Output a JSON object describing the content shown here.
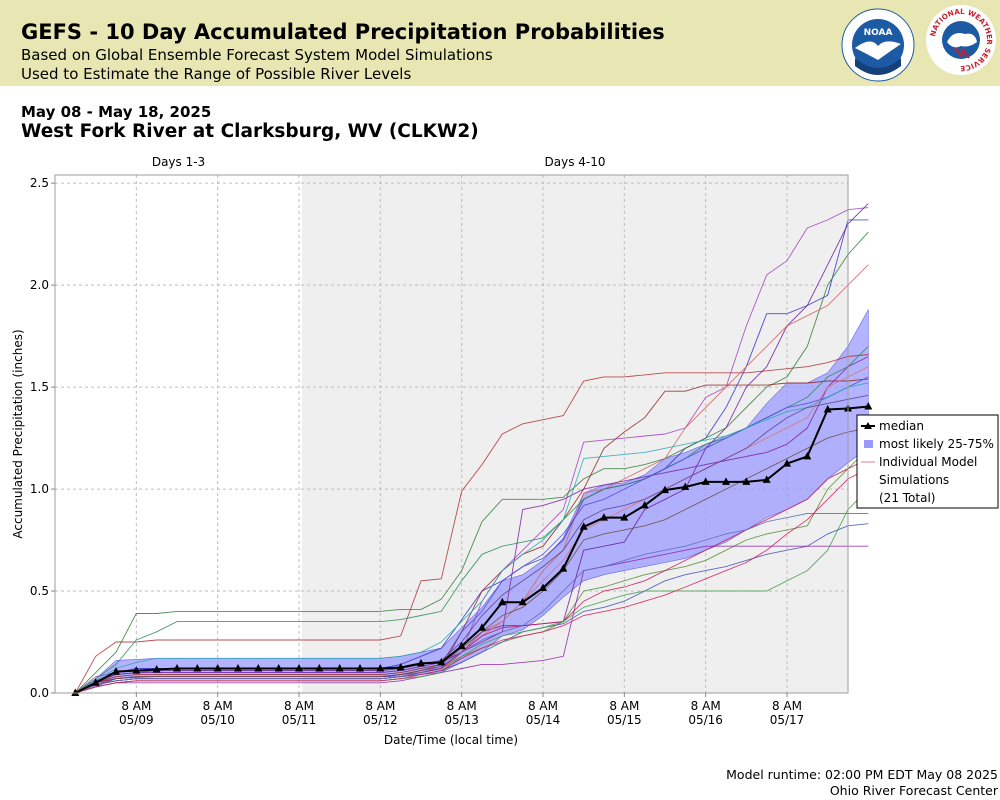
{
  "header": {
    "title": "GEFS - 10 Day Accumulated Precipitation Probabilities",
    "subtitle_line1": "Based on Global Ensemble Forecast System Model Simulations",
    "subtitle_line2": "Used to Estimate the Range of Possible River Levels",
    "logos": [
      {
        "name": "noaa-logo",
        "text": "NOAA"
      },
      {
        "name": "nws-logo",
        "text": "NATIONAL WEATHER SERVICE"
      }
    ],
    "colors": {
      "banner": "#e8e6b3",
      "noaa_blue": "#1c5aa3",
      "nws_red": "#c8202f"
    }
  },
  "date_range": "May 08 - May 18, 2025",
  "station": "West Fork River at Clarksburg, WV (CLKW2)",
  "footer": {
    "runtime": "Model runtime: 02:00 PM EDT May 08 2025",
    "center": "Ohio River Forecast Center"
  },
  "chart_data": {
    "type": "line",
    "xlabel": "Date/Time (local time)",
    "ylabel": "Accumulated Precipitation (inches)",
    "ylim": [
      0,
      2.54
    ],
    "yticks": [
      0.0,
      0.5,
      1.0,
      1.5,
      2.0,
      2.5
    ],
    "ytick_labels": [
      "0.0",
      "0.5",
      "1.0",
      "1.5",
      "2.0",
      "2.5"
    ],
    "xlim_hours": [
      -1,
      38
    ],
    "xticks": [
      {
        "h": 3,
        "time": "8 AM",
        "date": "05/09"
      },
      {
        "h": 7,
        "time": "8 AM",
        "date": "05/10"
      },
      {
        "h": 11,
        "time": "8 AM",
        "date": "05/11"
      },
      {
        "h": 15,
        "time": "8 AM",
        "date": "05/12"
      },
      {
        "h": 19,
        "time": "8 AM",
        "date": "05/13"
      },
      {
        "h": 23,
        "time": "8 AM",
        "date": "05/14"
      },
      {
        "h": 27,
        "time": "8 AM",
        "date": "05/15"
      },
      {
        "h": 31,
        "time": "8 AM",
        "date": "05/16"
      },
      {
        "h": 35,
        "time": "8 AM",
        "date": "05/17"
      }
    ],
    "x_unit": "6-hour steps from model start",
    "periods": [
      {
        "label": "Days 1-3",
        "start": -1,
        "end": 11.15,
        "shaded": false
      },
      {
        "label": "Days 4-10",
        "start": 11.15,
        "end": 38,
        "shaded": true
      }
    ],
    "grid": true,
    "legend": {
      "placement": "right",
      "entries": [
        "median",
        "most likely 25-75%",
        "Individual Model Simulations",
        "(21 Total)"
      ]
    },
    "colors": {
      "median": "#000000",
      "band": "#9999ff",
      "band_edge": "#6666ee",
      "shade": "#efefef"
    },
    "median": [
      0.0,
      0.05,
      0.105,
      0.11,
      0.115,
      0.12,
      0.12,
      0.12,
      0.12,
      0.12,
      0.12,
      0.12,
      0.12,
      0.12,
      0.12,
      0.12,
      0.125,
      0.145,
      0.15,
      0.23,
      0.32,
      0.445,
      0.445,
      0.515,
      0.61,
      0.815,
      0.86,
      0.86,
      0.92,
      0.995,
      1.01,
      1.035,
      1.035,
      1.035,
      1.045,
      1.125,
      1.16,
      1.39,
      1.395,
      1.405
    ],
    "band_low": [
      0.0,
      0.03,
      0.07,
      0.075,
      0.08,
      0.08,
      0.08,
      0.08,
      0.08,
      0.08,
      0.08,
      0.08,
      0.08,
      0.08,
      0.08,
      0.08,
      0.08,
      0.09,
      0.1,
      0.15,
      0.2,
      0.28,
      0.31,
      0.38,
      0.47,
      0.55,
      0.58,
      0.6,
      0.62,
      0.64,
      0.66,
      0.7,
      0.74,
      0.8,
      0.86,
      0.9,
      0.95,
      1.05,
      1.13,
      1.2
    ],
    "band_high": [
      0.0,
      0.07,
      0.16,
      0.165,
      0.17,
      0.17,
      0.17,
      0.17,
      0.17,
      0.17,
      0.17,
      0.17,
      0.17,
      0.17,
      0.17,
      0.17,
      0.18,
      0.2,
      0.22,
      0.32,
      0.42,
      0.55,
      0.58,
      0.65,
      0.76,
      0.98,
      1.02,
      1.03,
      1.07,
      1.15,
      1.18,
      1.22,
      1.26,
      1.3,
      1.42,
      1.52,
      1.52,
      1.57,
      1.7,
      1.88
    ],
    "simulations": [
      {
        "color": "#b03030",
        "values": [
          0.0,
          0.18,
          0.25,
          0.25,
          0.26,
          0.26,
          0.26,
          0.26,
          0.26,
          0.26,
          0.26,
          0.26,
          0.26,
          0.26,
          0.26,
          0.26,
          0.28,
          0.55,
          0.56,
          0.99,
          1.12,
          1.27,
          1.32,
          1.34,
          1.36,
          1.53,
          1.55,
          1.55,
          1.56,
          1.57,
          1.57,
          1.57,
          1.57,
          1.57,
          1.58,
          1.59,
          1.6,
          1.62,
          1.65,
          1.66
        ]
      },
      {
        "color": "#a040c0",
        "values": [
          0.0,
          0.08,
          0.1,
          0.11,
          0.11,
          0.11,
          0.11,
          0.11,
          0.11,
          0.11,
          0.11,
          0.11,
          0.11,
          0.11,
          0.11,
          0.11,
          0.12,
          0.14,
          0.15,
          0.2,
          0.45,
          0.6,
          0.7,
          0.8,
          0.9,
          1.23,
          1.24,
          1.25,
          1.26,
          1.27,
          1.3,
          1.45,
          1.5,
          1.8,
          2.05,
          2.12,
          2.28,
          2.32,
          2.37,
          2.38
        ]
      },
      {
        "color": "#3333cc",
        "values": [
          0.0,
          0.05,
          0.1,
          0.12,
          0.12,
          0.12,
          0.12,
          0.12,
          0.12,
          0.12,
          0.12,
          0.12,
          0.12,
          0.12,
          0.12,
          0.12,
          0.14,
          0.18,
          0.22,
          0.36,
          0.5,
          0.55,
          0.62,
          0.66,
          0.75,
          0.95,
          1.0,
          1.02,
          1.05,
          1.1,
          1.2,
          1.25,
          1.4,
          1.6,
          1.86,
          1.86,
          1.9,
          1.95,
          2.32,
          2.32
        ]
      },
      {
        "color": "#2e7d32",
        "values": [
          0.0,
          0.1,
          0.2,
          0.39,
          0.39,
          0.4,
          0.4,
          0.4,
          0.4,
          0.4,
          0.4,
          0.4,
          0.4,
          0.4,
          0.4,
          0.4,
          0.41,
          0.41,
          0.46,
          0.6,
          0.84,
          0.95,
          0.95,
          0.95,
          0.96,
          1.05,
          1.1,
          1.1,
          1.12,
          1.15,
          1.2,
          1.25,
          1.3,
          1.4,
          1.5,
          1.55,
          1.7,
          2.0,
          2.15,
          2.26
        ]
      },
      {
        "color": "#6a1b9a",
        "values": [
          0.0,
          0.06,
          0.09,
          0.1,
          0.1,
          0.1,
          0.1,
          0.1,
          0.1,
          0.1,
          0.1,
          0.1,
          0.1,
          0.1,
          0.1,
          0.1,
          0.11,
          0.13,
          0.15,
          0.2,
          0.3,
          0.33,
          0.33,
          0.34,
          0.35,
          0.7,
          0.72,
          0.74,
          0.9,
          0.95,
          1.0,
          1.2,
          1.3,
          1.5,
          1.6,
          1.8,
          1.9,
          2.1,
          2.3,
          2.4
        ]
      },
      {
        "color": "#d06060",
        "values": [
          0.0,
          0.04,
          0.06,
          0.07,
          0.07,
          0.07,
          0.07,
          0.07,
          0.07,
          0.07,
          0.07,
          0.07,
          0.07,
          0.07,
          0.07,
          0.07,
          0.08,
          0.1,
          0.12,
          0.2,
          0.3,
          0.35,
          0.45,
          0.6,
          0.7,
          0.98,
          1.0,
          1.05,
          1.1,
          1.15,
          1.3,
          1.4,
          1.5,
          1.6,
          1.7,
          1.8,
          1.85,
          1.9,
          2.0,
          2.1
        ]
      },
      {
        "color": "#8e2424",
        "values": [
          0.0,
          0.05,
          0.08,
          0.09,
          0.09,
          0.09,
          0.09,
          0.09,
          0.09,
          0.09,
          0.09,
          0.09,
          0.09,
          0.09,
          0.09,
          0.09,
          0.1,
          0.12,
          0.14,
          0.3,
          0.5,
          0.6,
          0.68,
          0.72,
          0.85,
          1.0,
          1.2,
          1.28,
          1.35,
          1.48,
          1.48,
          1.51,
          1.51,
          1.51,
          1.51,
          1.52,
          1.52,
          1.53,
          1.53,
          1.54
        ]
      },
      {
        "color": "#2e8b57",
        "values": [
          0.0,
          0.07,
          0.14,
          0.26,
          0.3,
          0.35,
          0.35,
          0.35,
          0.35,
          0.35,
          0.35,
          0.35,
          0.35,
          0.35,
          0.35,
          0.35,
          0.36,
          0.38,
          0.4,
          0.55,
          0.68,
          0.72,
          0.74,
          0.76,
          0.85,
          0.95,
          1.0,
          1.02,
          1.05,
          1.1,
          1.15,
          1.22,
          1.25,
          1.3,
          1.35,
          1.4,
          1.45,
          1.55,
          1.6,
          1.7
        ]
      },
      {
        "color": "#7b1fa2",
        "values": [
          0.0,
          0.05,
          0.07,
          0.08,
          0.08,
          0.08,
          0.08,
          0.08,
          0.08,
          0.08,
          0.08,
          0.08,
          0.08,
          0.08,
          0.08,
          0.08,
          0.09,
          0.11,
          0.13,
          0.2,
          0.25,
          0.3,
          0.9,
          0.92,
          0.95,
          1.0,
          1.02,
          1.04,
          1.06,
          1.08,
          1.1,
          1.12,
          1.14,
          1.16,
          1.18,
          1.22,
          1.3,
          1.5,
          1.6,
          1.65
        ]
      },
      {
        "color": "#4a4ae0",
        "values": [
          0.0,
          0.04,
          0.06,
          0.07,
          0.07,
          0.07,
          0.07,
          0.07,
          0.07,
          0.07,
          0.07,
          0.07,
          0.07,
          0.07,
          0.07,
          0.07,
          0.08,
          0.1,
          0.12,
          0.3,
          0.4,
          0.55,
          0.62,
          0.68,
          0.78,
          0.92,
          0.95,
          1.0,
          1.05,
          1.1,
          1.15,
          1.2,
          1.25,
          1.3,
          1.35,
          1.4,
          1.42,
          1.45,
          1.5,
          1.55
        ]
      },
      {
        "color": "#e07070",
        "values": [
          0.0,
          0.03,
          0.05,
          0.06,
          0.06,
          0.06,
          0.06,
          0.06,
          0.06,
          0.06,
          0.06,
          0.06,
          0.06,
          0.06,
          0.06,
          0.06,
          0.07,
          0.08,
          0.1,
          0.2,
          0.28,
          0.35,
          0.45,
          0.55,
          0.65,
          0.8,
          0.85,
          0.9,
          0.95,
          1.0,
          1.05,
          1.1,
          1.15,
          1.2,
          1.25,
          1.3,
          1.35,
          1.5,
          1.55,
          1.6
        ]
      },
      {
        "color": "#2aa8b0",
        "values": [
          0.0,
          0.06,
          0.12,
          0.15,
          0.17,
          0.17,
          0.17,
          0.17,
          0.17,
          0.17,
          0.17,
          0.17,
          0.17,
          0.17,
          0.17,
          0.17,
          0.18,
          0.2,
          0.25,
          0.35,
          0.45,
          0.6,
          0.68,
          0.75,
          0.85,
          1.15,
          1.16,
          1.17,
          1.18,
          1.2,
          1.22,
          1.24,
          1.26,
          1.3,
          1.34,
          1.38,
          1.4,
          1.45,
          1.5,
          1.52
        ]
      },
      {
        "color": "#5a3e8e",
        "values": [
          0.0,
          0.05,
          0.09,
          0.1,
          0.11,
          0.11,
          0.11,
          0.11,
          0.11,
          0.11,
          0.11,
          0.11,
          0.11,
          0.11,
          0.11,
          0.11,
          0.12,
          0.14,
          0.16,
          0.25,
          0.38,
          0.48,
          0.55,
          0.62,
          0.7,
          0.85,
          0.9,
          0.92,
          0.95,
          1.0,
          1.05,
          1.1,
          1.15,
          1.2,
          1.28,
          1.35,
          1.4,
          1.42,
          1.44,
          1.46
        ]
      },
      {
        "color": "#558b2f",
        "values": [
          0.0,
          0.04,
          0.06,
          0.07,
          0.07,
          0.07,
          0.07,
          0.07,
          0.07,
          0.07,
          0.07,
          0.07,
          0.07,
          0.07,
          0.07,
          0.07,
          0.08,
          0.1,
          0.12,
          0.18,
          0.22,
          0.25,
          0.28,
          0.3,
          0.35,
          0.5,
          0.52,
          0.55,
          0.58,
          0.6,
          0.62,
          0.65,
          0.7,
          0.75,
          0.78,
          0.8,
          0.82,
          1.0,
          1.1,
          1.2
        ]
      },
      {
        "color": "#c2185b",
        "values": [
          0.0,
          0.05,
          0.07,
          0.08,
          0.08,
          0.08,
          0.08,
          0.08,
          0.08,
          0.08,
          0.08,
          0.08,
          0.08,
          0.08,
          0.08,
          0.08,
          0.09,
          0.1,
          0.12,
          0.2,
          0.28,
          0.32,
          0.33,
          0.34,
          0.35,
          0.45,
          0.5,
          0.52,
          0.55,
          0.6,
          0.65,
          0.7,
          0.75,
          0.8,
          0.85,
          0.9,
          0.95,
          1.05,
          1.1,
          1.15
        ]
      },
      {
        "color": "#3f51b5",
        "values": [
          0.0,
          0.04,
          0.06,
          0.07,
          0.07,
          0.07,
          0.07,
          0.07,
          0.07,
          0.07,
          0.07,
          0.07,
          0.07,
          0.07,
          0.07,
          0.07,
          0.08,
          0.09,
          0.11,
          0.15,
          0.2,
          0.25,
          0.3,
          0.32,
          0.34,
          0.4,
          0.42,
          0.45,
          0.5,
          0.55,
          0.58,
          0.6,
          0.62,
          0.65,
          0.68,
          0.7,
          0.72,
          0.78,
          0.82,
          0.83
        ]
      },
      {
        "color": "#8e24aa",
        "values": [
          0.0,
          0.03,
          0.05,
          0.05,
          0.05,
          0.05,
          0.05,
          0.05,
          0.05,
          0.05,
          0.05,
          0.05,
          0.05,
          0.05,
          0.05,
          0.05,
          0.06,
          0.08,
          0.1,
          0.12,
          0.14,
          0.14,
          0.15,
          0.16,
          0.18,
          0.6,
          0.62,
          0.64,
          0.66,
          0.68,
          0.7,
          0.72,
          0.72,
          0.72,
          0.72,
          0.72,
          0.72,
          0.72,
          0.72,
          0.72
        ]
      },
      {
        "color": "#6d4c41",
        "values": [
          0.0,
          0.04,
          0.07,
          0.08,
          0.08,
          0.08,
          0.08,
          0.08,
          0.08,
          0.08,
          0.08,
          0.08,
          0.08,
          0.08,
          0.08,
          0.08,
          0.09,
          0.11,
          0.14,
          0.22,
          0.3,
          0.38,
          0.42,
          0.5,
          0.6,
          0.75,
          0.78,
          0.8,
          0.82,
          0.85,
          0.9,
          0.95,
          1.0,
          1.05,
          1.1,
          1.15,
          1.2,
          1.25,
          1.28,
          1.3
        ]
      },
      {
        "color": "#43a047",
        "values": [
          0.0,
          0.03,
          0.05,
          0.06,
          0.06,
          0.06,
          0.06,
          0.06,
          0.06,
          0.06,
          0.06,
          0.06,
          0.06,
          0.06,
          0.06,
          0.06,
          0.07,
          0.08,
          0.1,
          0.18,
          0.24,
          0.28,
          0.3,
          0.32,
          0.35,
          0.42,
          0.45,
          0.48,
          0.5,
          0.5,
          0.5,
          0.5,
          0.5,
          0.5,
          0.5,
          0.55,
          0.6,
          0.7,
          0.9,
          1.0
        ]
      },
      {
        "color": "#5c6bc0",
        "values": [
          0.0,
          0.04,
          0.06,
          0.07,
          0.07,
          0.07,
          0.07,
          0.07,
          0.07,
          0.07,
          0.07,
          0.07,
          0.07,
          0.07,
          0.07,
          0.07,
          0.08,
          0.1,
          0.13,
          0.2,
          0.26,
          0.3,
          0.33,
          0.4,
          0.5,
          0.6,
          0.62,
          0.65,
          0.68,
          0.7,
          0.72,
          0.75,
          0.78,
          0.8,
          0.84,
          0.86,
          0.88,
          0.88,
          0.88,
          0.88
        ]
      },
      {
        "color": "#d81b60",
        "values": [
          0.0,
          0.03,
          0.05,
          0.06,
          0.06,
          0.06,
          0.06,
          0.06,
          0.06,
          0.06,
          0.06,
          0.06,
          0.06,
          0.06,
          0.06,
          0.06,
          0.07,
          0.09,
          0.11,
          0.17,
          0.22,
          0.26,
          0.28,
          0.3,
          0.33,
          0.38,
          0.4,
          0.42,
          0.45,
          0.48,
          0.52,
          0.56,
          0.6,
          0.64,
          0.7,
          0.78,
          0.85,
          0.95,
          1.05,
          1.1
        ]
      }
    ]
  }
}
